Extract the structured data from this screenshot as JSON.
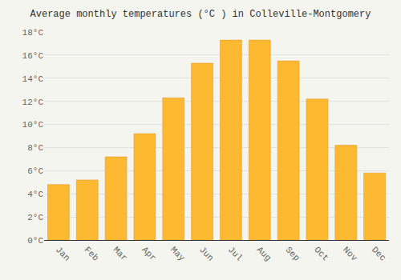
{
  "chart_data": {
    "type": "bar",
    "title": "Average monthly temperatures (°C ) in Colleville-Montgomery",
    "categories": [
      "Jan",
      "Feb",
      "Mar",
      "Apr",
      "May",
      "Jun",
      "Jul",
      "Aug",
      "Sep",
      "Oct",
      "Nov",
      "Dec"
    ],
    "values": [
      4.8,
      5.2,
      7.2,
      9.2,
      12.3,
      15.3,
      17.3,
      17.3,
      15.5,
      12.2,
      8.2,
      5.8
    ],
    "color": "#FDB931",
    "ylim": [
      0,
      18
    ],
    "yticks": [
      {
        "value": 0,
        "label": "0°C"
      },
      {
        "value": 2,
        "label": "2°C"
      },
      {
        "value": 4,
        "label": "4°C"
      },
      {
        "value": 6,
        "label": "6°C"
      },
      {
        "value": 8,
        "label": "8°C"
      },
      {
        "value": 10,
        "label": "10°C"
      },
      {
        "value": 12,
        "label": "12°C"
      },
      {
        "value": 14,
        "label": "14°C"
      },
      {
        "value": 16,
        "label": "16°C"
      },
      {
        "value": 18,
        "label": "18°C"
      }
    ],
    "grid": true
  }
}
